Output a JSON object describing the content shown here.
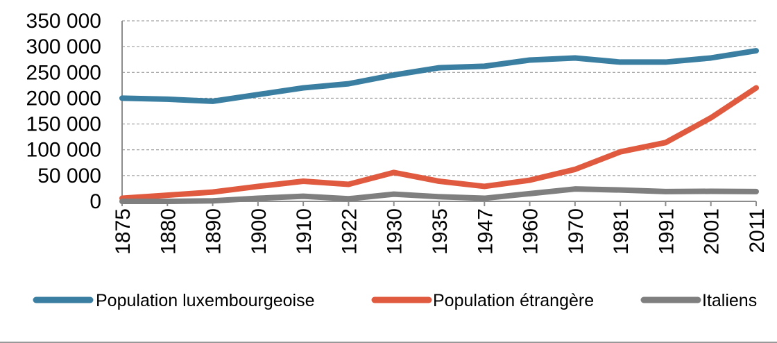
{
  "chart_data": {
    "type": "line",
    "categories": [
      "1875",
      "1880",
      "1890",
      "1900",
      "1910",
      "1922",
      "1930",
      "1935",
      "1947",
      "1960",
      "1970",
      "1981",
      "1991",
      "2001",
      "2011"
    ],
    "ylim": [
      0,
      350000
    ],
    "ytick_labels": [
      "0",
      "50 000",
      "100 000",
      "150 000",
      "200 000",
      "250 000",
      "300 000",
      "350 000"
    ],
    "ytick_values": [
      0,
      50000,
      100000,
      150000,
      200000,
      250000,
      300000,
      350000
    ],
    "grid": true,
    "legend_position": "bottom",
    "series": [
      {
        "name": "Population luxembourgeoise",
        "color": "#3a7ea1",
        "values": [
          200000,
          198000,
          194000,
          207000,
          220000,
          228000,
          245000,
          259000,
          262000,
          274000,
          278000,
          270000,
          270000,
          278000,
          292000
        ]
      },
      {
        "name": "Population étrangère",
        "color": "#e05a3f",
        "values": [
          6000,
          12000,
          18000,
          29000,
          39000,
          33000,
          56000,
          39000,
          29000,
          41000,
          62000,
          96000,
          114000,
          162000,
          220000
        ]
      },
      {
        "name": "Italiens",
        "color": "#7f7f7f",
        "values": [
          0,
          0,
          1000,
          6000,
          10000,
          5000,
          14000,
          9000,
          6000,
          15000,
          24000,
          22000,
          19000,
          19500,
          19000
        ]
      }
    ]
  }
}
